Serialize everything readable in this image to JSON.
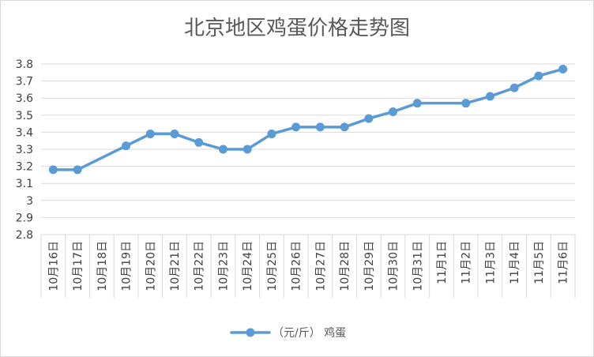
{
  "chart_data": {
    "type": "line",
    "title": "北京地区鸡蛋价格走势图",
    "xlabel": "",
    "ylabel": "",
    "ylim": [
      2.8,
      3.8
    ],
    "yticks": [
      "3.8",
      "3.7",
      "3.6",
      "3.5",
      "3.4",
      "3.3",
      "3.2",
      "3.1",
      "3",
      "2.9",
      "2.8"
    ],
    "grid": true,
    "legend_position": "bottom",
    "categories": [
      "10月16日",
      "10月17日",
      "10月18日",
      "10月19日",
      "10月20日",
      "10月21日",
      "10月22日",
      "10月23日",
      "10月24日",
      "10月25日",
      "10月26日",
      "10月27日",
      "10月28日",
      "10月29日",
      "10月30日",
      "10月31日",
      "11月1日",
      "11月2日",
      "11月3日",
      "11月4日",
      "11月5日",
      "11月6日"
    ],
    "series": [
      {
        "name": "（元/斤） 鸡蛋",
        "color": "#5B9BD5",
        "values": [
          3.18,
          3.18,
          null,
          3.32,
          3.39,
          3.39,
          3.34,
          3.3,
          3.3,
          3.39,
          3.43,
          3.43,
          3.43,
          3.48,
          3.52,
          3.57,
          null,
          3.57,
          3.61,
          3.66,
          3.73,
          3.77
        ]
      }
    ]
  }
}
